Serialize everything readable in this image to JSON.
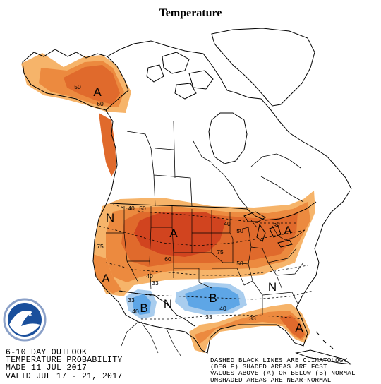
{
  "title": "Temperature",
  "outlook": {
    "line1": "6-10 DAY OUTLOOK",
    "line2": "TEMPERATURE PROBABILITY",
    "line3": "MADE  11 JUL 2017",
    "line4": "VALID  JUL 17 - 21, 2017"
  },
  "legend": {
    "line1": "DASHED BLACK LINES ARE CLIMATOLOGY",
    "line2": "(DEG F) SHADED AREAS ARE FCST",
    "line3": "VALUES ABOVE (A) OR BELOW (B) NORMAL",
    "line4": "UNSHADED AREAS ARE NEAR-NORMAL"
  },
  "category_labels": {
    "alaska": "A",
    "north_central": "A",
    "northeast": "A",
    "california": "A",
    "florida": "A",
    "southwest_below": "B",
    "south_central_below": "B",
    "pacific_nw_near_normal": "N",
    "southwest_near_normal": "N",
    "southeast_near_normal": "N"
  },
  "contour_labels": {
    "ak_50": "50",
    "ak_60": "60",
    "west_40": "40",
    "west_50": "50",
    "west_75": "75",
    "central_60": "60",
    "central_75": "75",
    "ne_40": "40",
    "ne_50": "50",
    "ne_60": "60",
    "plains_50": "50",
    "south_40": "40",
    "south_33": "33",
    "sw_33": "33",
    "sw_40": "40",
    "sc_40": "40",
    "sc_33": "33",
    "se_33": "33"
  },
  "logo": {
    "agency": "NOAA"
  },
  "colors": {
    "above_33": "#f6b46a",
    "above_40": "#ec8a3f",
    "above_50": "#e06a2c",
    "above_60": "#d1441f",
    "below_33": "#a9cdee",
    "below_40": "#5ea6e6",
    "logo_blue": "#1a4f9c"
  }
}
